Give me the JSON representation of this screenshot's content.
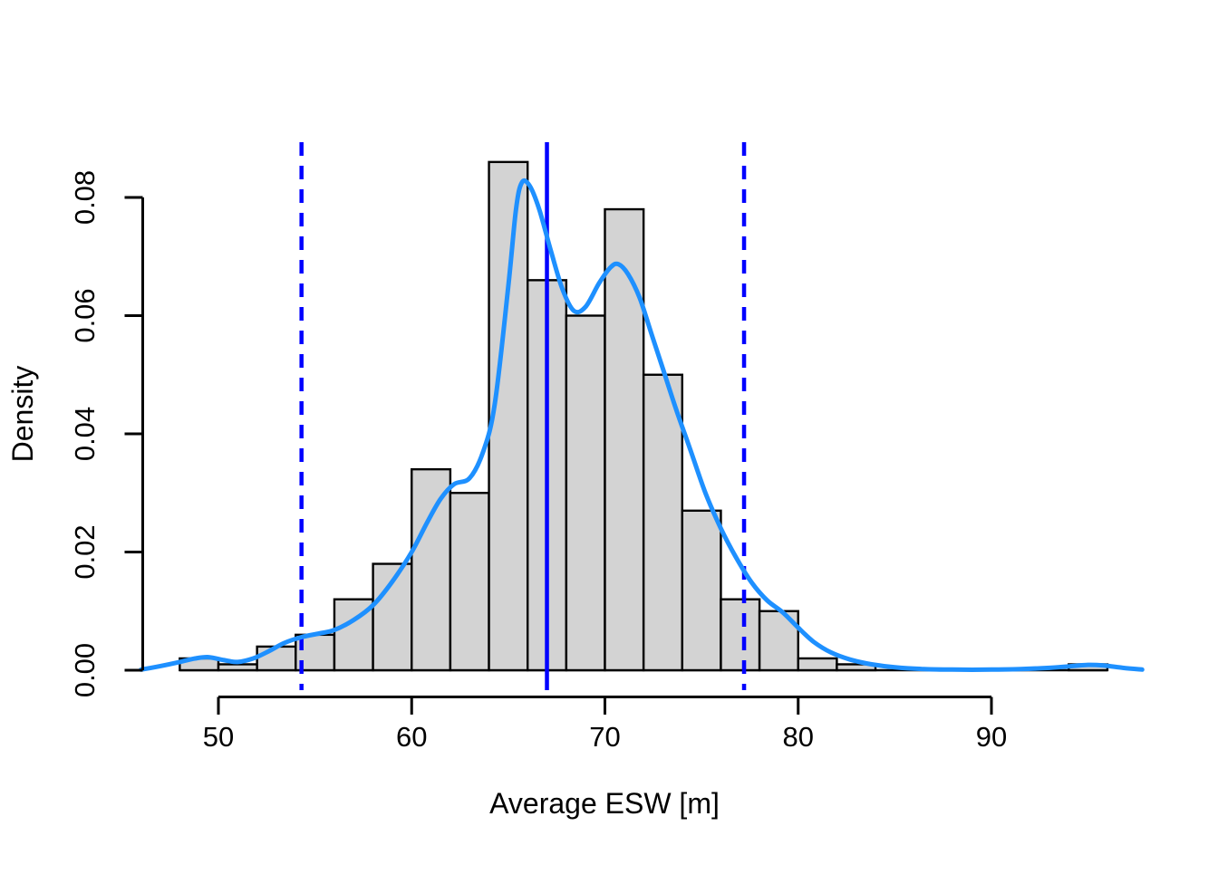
{
  "chart_data": {
    "type": "bar",
    "subtype": "histogram-with-density-overlay",
    "title": "",
    "xlabel": "Average ESW [m]",
    "ylabel": "Density",
    "x_tick_values": [
      50,
      60,
      70,
      80,
      90
    ],
    "x_tick_labels": [
      "50",
      "60",
      "70",
      "80",
      "90"
    ],
    "y_tick_values": [
      0,
      0.02,
      0.04,
      0.06,
      0.08
    ],
    "y_tick_labels": [
      "0.00",
      "0.02",
      "0.04",
      "0.06",
      "0.08"
    ],
    "xlim": [
      46,
      98
    ],
    "ylim": [
      0,
      0.0865
    ],
    "grid": "off",
    "legend": "none",
    "histogram": {
      "bin_width": 2,
      "bins": [
        {
          "x0": 48,
          "x1": 50,
          "density": 0.002
        },
        {
          "x0": 50,
          "x1": 52,
          "density": 0.001
        },
        {
          "x0": 52,
          "x1": 54,
          "density": 0.004
        },
        {
          "x0": 54,
          "x1": 56,
          "density": 0.006
        },
        {
          "x0": 56,
          "x1": 58,
          "density": 0.012
        },
        {
          "x0": 58,
          "x1": 60,
          "density": 0.018
        },
        {
          "x0": 60,
          "x1": 62,
          "density": 0.034
        },
        {
          "x0": 62,
          "x1": 64,
          "density": 0.03
        },
        {
          "x0": 64,
          "x1": 66,
          "density": 0.086
        },
        {
          "x0": 66,
          "x1": 68,
          "density": 0.066
        },
        {
          "x0": 68,
          "x1": 70,
          "density": 0.06
        },
        {
          "x0": 70,
          "x1": 72,
          "density": 0.078
        },
        {
          "x0": 72,
          "x1": 74,
          "density": 0.05
        },
        {
          "x0": 74,
          "x1": 76,
          "density": 0.027
        },
        {
          "x0": 76,
          "x1": 78,
          "density": 0.012
        },
        {
          "x0": 78,
          "x1": 80,
          "density": 0.01
        },
        {
          "x0": 80,
          "x1": 82,
          "density": 0.002
        },
        {
          "x0": 82,
          "x1": 84,
          "density": 0.001
        },
        {
          "x0": 94,
          "x1": 96,
          "density": 0.001
        }
      ]
    },
    "density_curve": {
      "points": [
        [
          46.0,
          0.0001
        ],
        [
          47.0,
          0.0007
        ],
        [
          48.0,
          0.0014
        ],
        [
          48.8,
          0.002
        ],
        [
          49.5,
          0.0022
        ],
        [
          50.3,
          0.0017
        ],
        [
          51.0,
          0.0014
        ],
        [
          51.8,
          0.002
        ],
        [
          52.6,
          0.0032
        ],
        [
          53.4,
          0.0046
        ],
        [
          54.3,
          0.0056
        ],
        [
          55.2,
          0.0062
        ],
        [
          56.0,
          0.0068
        ],
        [
          57.0,
          0.0085
        ],
        [
          58.0,
          0.011
        ],
        [
          59.0,
          0.015
        ],
        [
          60.0,
          0.02
        ],
        [
          60.8,
          0.025
        ],
        [
          61.5,
          0.029
        ],
        [
          62.2,
          0.0315
        ],
        [
          63.0,
          0.0325
        ],
        [
          63.7,
          0.037
        ],
        [
          64.3,
          0.045
        ],
        [
          65.0,
          0.065
        ],
        [
          65.4,
          0.078
        ],
        [
          65.7,
          0.0825
        ],
        [
          66.1,
          0.082
        ],
        [
          66.6,
          0.078
        ],
        [
          67.2,
          0.071
        ],
        [
          67.8,
          0.0645
        ],
        [
          68.4,
          0.0608
        ],
        [
          69.0,
          0.0615
        ],
        [
          69.7,
          0.0655
        ],
        [
          70.3,
          0.0682
        ],
        [
          70.7,
          0.0687
        ],
        [
          71.2,
          0.067
        ],
        [
          71.8,
          0.063
        ],
        [
          72.4,
          0.057
        ],
        [
          73.0,
          0.051
        ],
        [
          73.7,
          0.044
        ],
        [
          74.4,
          0.0375
        ],
        [
          75.2,
          0.03
        ],
        [
          76.0,
          0.024
        ],
        [
          76.8,
          0.019
        ],
        [
          77.6,
          0.0148
        ],
        [
          78.4,
          0.0118
        ],
        [
          79.2,
          0.0098
        ],
        [
          80.0,
          0.0072
        ],
        [
          80.8,
          0.0048
        ],
        [
          81.7,
          0.003
        ],
        [
          82.7,
          0.0018
        ],
        [
          83.8,
          0.001
        ],
        [
          85.0,
          0.0005
        ],
        [
          86.5,
          0.0002
        ],
        [
          88.0,
          0.0001
        ],
        [
          90.0,
          0.0001
        ],
        [
          91.5,
          0.0002
        ],
        [
          93.0,
          0.0004
        ],
        [
          94.2,
          0.0007
        ],
        [
          95.0,
          0.0009
        ],
        [
          95.8,
          0.0008
        ],
        [
          96.8,
          0.0004
        ],
        [
          97.8,
          0.0001
        ]
      ]
    },
    "reference_lines": {
      "solid_x": 67,
      "dashed_x": [
        54.3,
        77.2
      ]
    },
    "colors": {
      "background": "#ffffff",
      "bar_fill": "#d3d3d3",
      "bar_border": "#000000",
      "density_curve": "#1e90ff",
      "reference_line": "#0000ff",
      "axis": "#000000",
      "text": "#000000"
    }
  }
}
